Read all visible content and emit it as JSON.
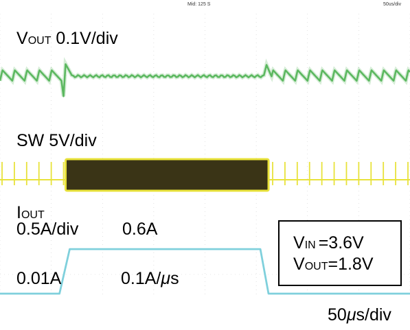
{
  "header": {
    "center_text": "Mid: 125 S",
    "timebase_top": "50us/div"
  },
  "labels": {
    "vout_v": "V",
    "vout_sub": "OUT",
    "vout_scale": "0.1V/div",
    "sw": "SW 5V/div",
    "iout_i": "I",
    "iout_sub": "OUT",
    "iout_scale": "0.5A/div",
    "i_high": "0.6A",
    "i_low": "0.01A",
    "slew": "0.1A/",
    "slew_mu": "μ",
    "slew_unit": "s",
    "timebase_bottom_num": "50",
    "timebase_bottom_mu": "μ",
    "timebase_bottom_unit": "s/div"
  },
  "conditions": {
    "vin_v": "V",
    "vin_sub": "IN",
    "vin_val": "=3.6V",
    "vout_v": "V",
    "vout_sub": "OUT",
    "vout_val": "=1.8V"
  },
  "colors": {
    "vout_trace": "#5cb860",
    "sw_trace": "#e8e23a",
    "sw_burst": "#3a3416",
    "iout_trace": "#7fd0dc",
    "grid": "#cfcfcf"
  },
  "chart_data": {
    "type": "line",
    "time_per_div_us": 50,
    "series": [
      {
        "name": "VOUT",
        "scale_per_div": "0.1 V",
        "points_t_us": [
          0,
          60,
          62,
          64,
          70,
          100,
          200,
          258,
          260,
          264,
          300,
          400
        ],
        "points_v_mV": [
          0,
          0,
          -55,
          30,
          0,
          -2,
          -2,
          0,
          28,
          3,
          0,
          0
        ],
        "ripple_mV": 28
      },
      {
        "name": "SW",
        "scale_per_div": "5 V",
        "burst_start_us": 64,
        "burst_end_us": 262,
        "pulse_period_us": 12
      },
      {
        "name": "IOUT",
        "scale_per_div": "0.5 A",
        "points_t_us": [
          0,
          58,
          68,
          254,
          262,
          400
        ],
        "points_A": [
          0.01,
          0.01,
          0.6,
          0.6,
          0.01,
          0.01
        ]
      }
    ]
  }
}
